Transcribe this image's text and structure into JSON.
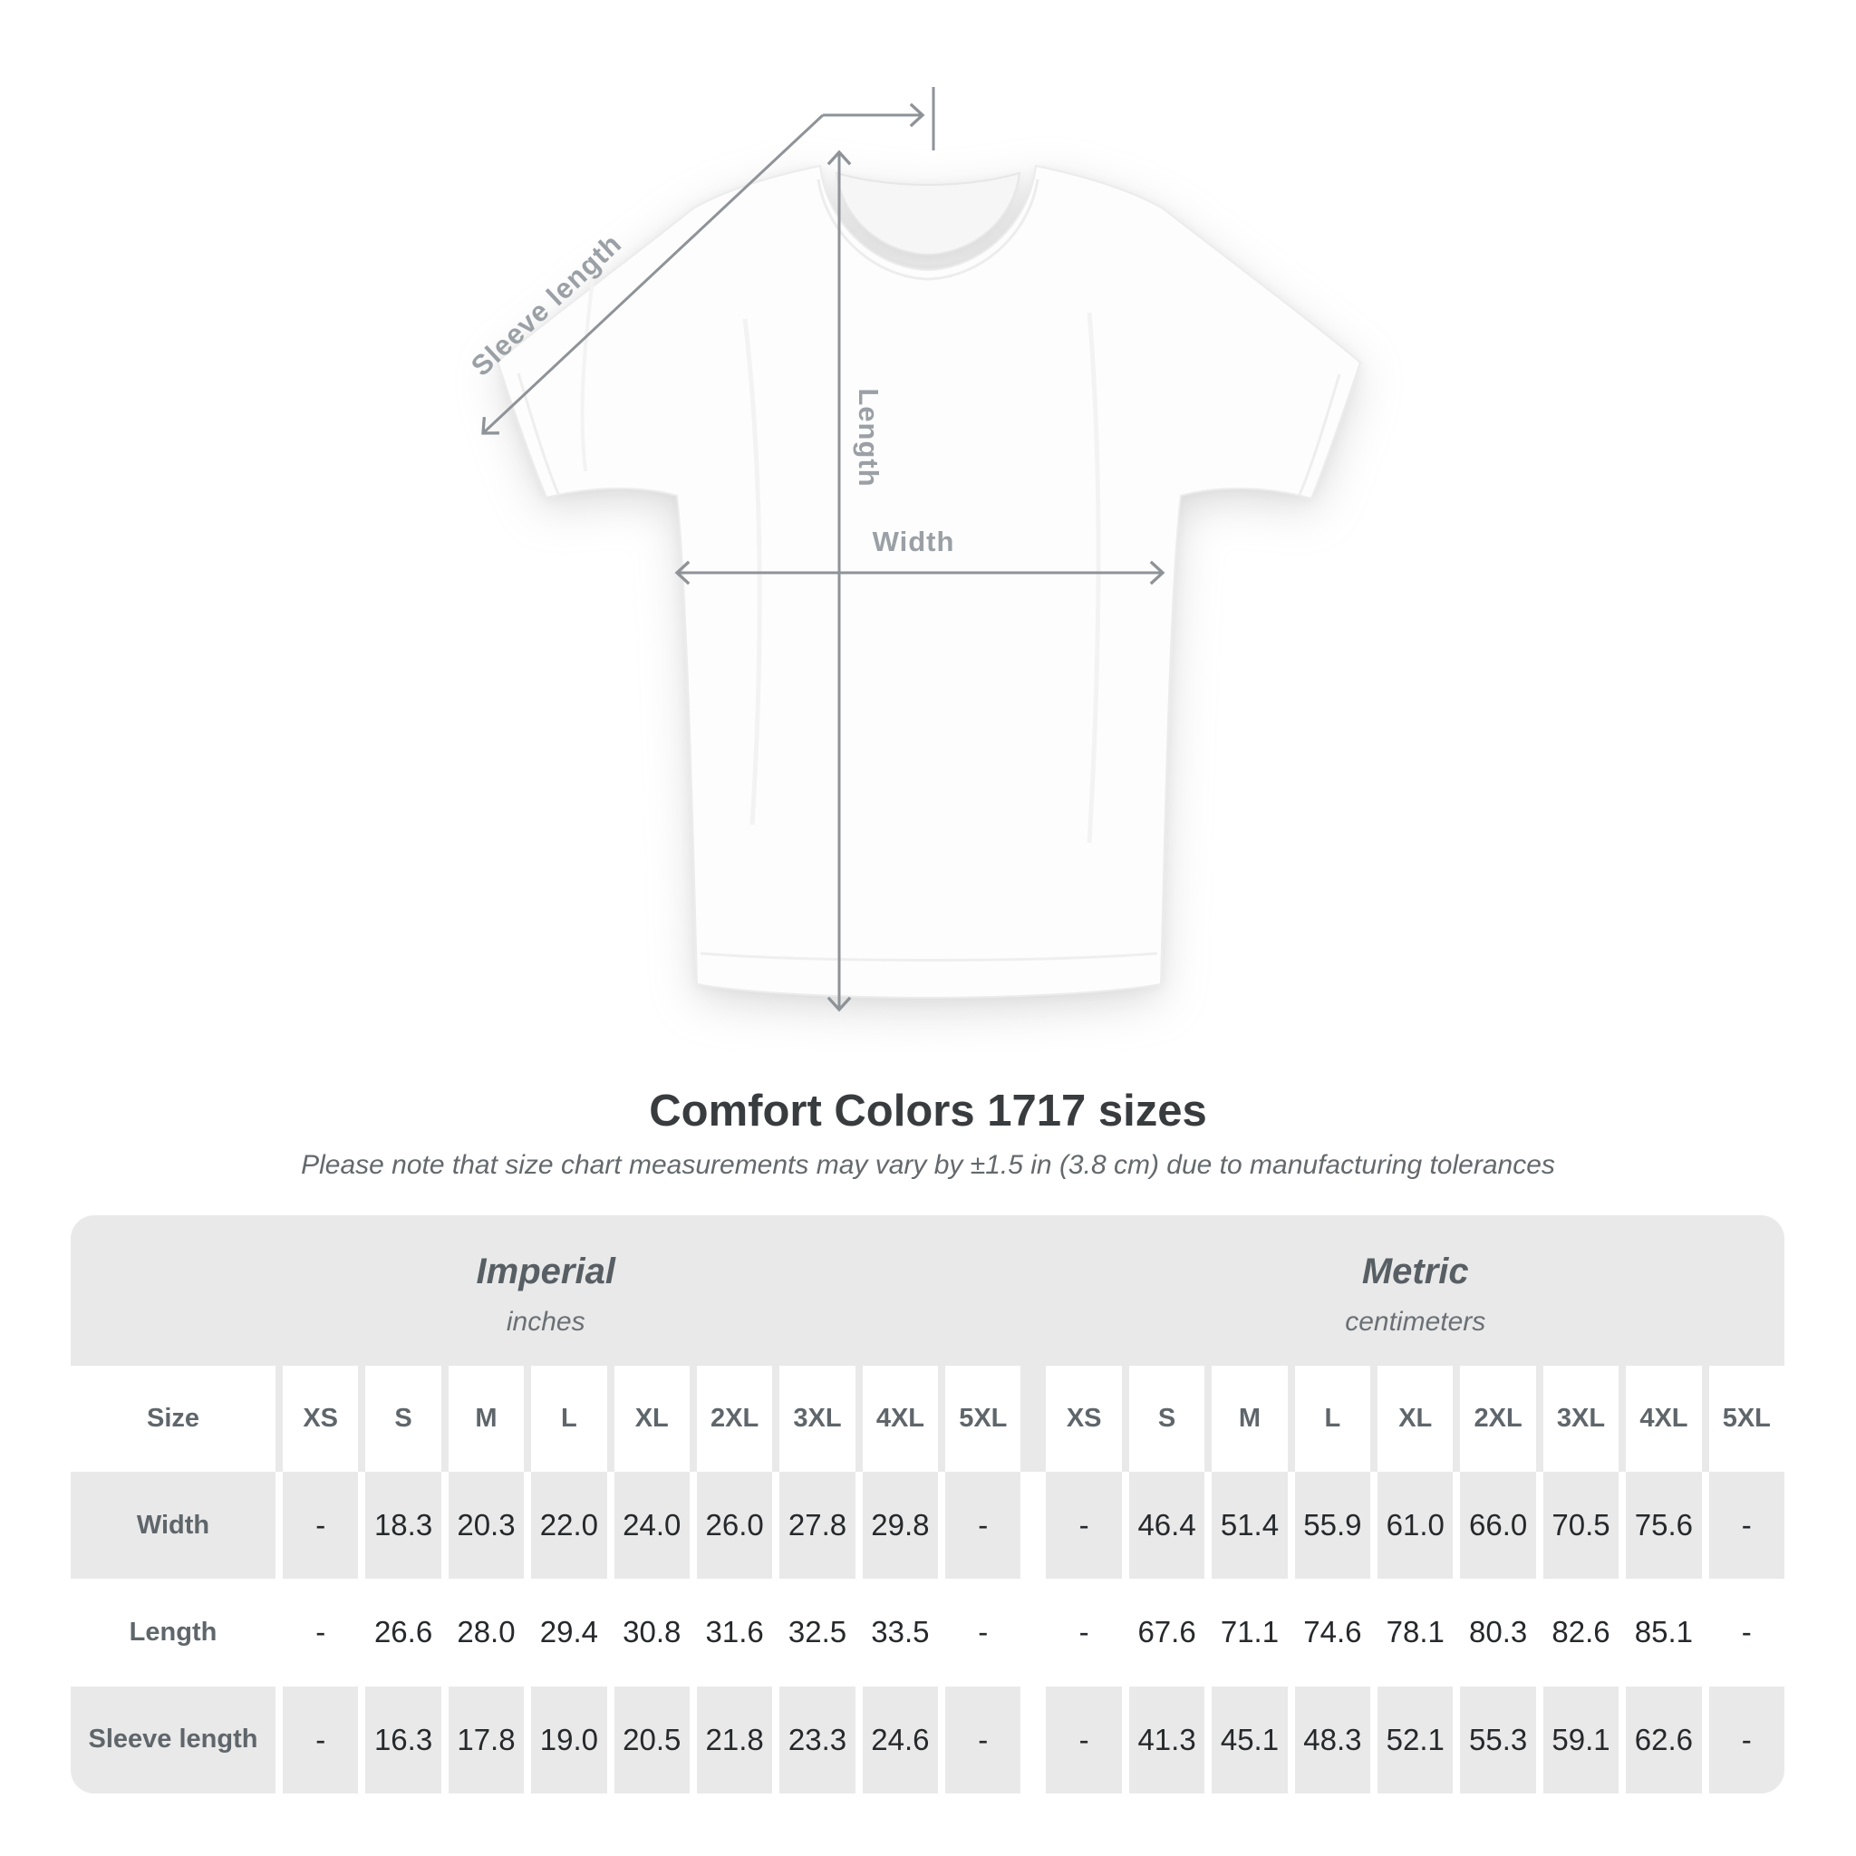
{
  "diagram": {
    "sleeve_length_label": "Sleeve length",
    "length_label": "Length",
    "width_label": "Width"
  },
  "header": {
    "title": "Comfort Colors 1717 sizes",
    "subtitle": "Please note that size chart measurements may vary by ±1.5 in (3.8 cm) due to manufacturing tolerances"
  },
  "table": {
    "corner_label": "Size",
    "groups": [
      {
        "label": "Imperial",
        "sublabel": "inches"
      },
      {
        "label": "Metric",
        "sublabel": "centimeters"
      }
    ],
    "sizes": [
      "XS",
      "S",
      "M",
      "L",
      "XL",
      "2XL",
      "3XL",
      "4XL",
      "5XL"
    ],
    "rows": [
      {
        "label": "Width",
        "imperial": [
          "-",
          "18.3",
          "20.3",
          "22.0",
          "24.0",
          "26.0",
          "27.8",
          "29.8",
          "-"
        ],
        "metric": [
          "-",
          "46.4",
          "51.4",
          "55.9",
          "61.0",
          "66.0",
          "70.5",
          "75.6",
          "-"
        ]
      },
      {
        "label": "Length",
        "imperial": [
          "-",
          "26.6",
          "28.0",
          "29.4",
          "30.8",
          "31.6",
          "32.5",
          "33.5",
          "-"
        ],
        "metric": [
          "-",
          "67.6",
          "71.1",
          "74.6",
          "78.1",
          "80.3",
          "82.6",
          "85.1",
          "-"
        ]
      },
      {
        "label": "Sleeve length",
        "imperial": [
          "-",
          "16.3",
          "17.8",
          "19.0",
          "20.5",
          "21.8",
          "23.3",
          "24.6",
          "-"
        ],
        "metric": [
          "-",
          "41.3",
          "45.1",
          "48.3",
          "52.1",
          "55.3",
          "59.1",
          "62.6",
          "-"
        ]
      }
    ]
  },
  "colors": {
    "annotation_line": "#8e9398",
    "annotation_label": "#9aa0a5",
    "title_text": "#393c3f",
    "muted_text": "#5f666b",
    "table_value_text": "#26292b",
    "table_background": "#e9e9e9",
    "page_background": "#ffffff"
  }
}
